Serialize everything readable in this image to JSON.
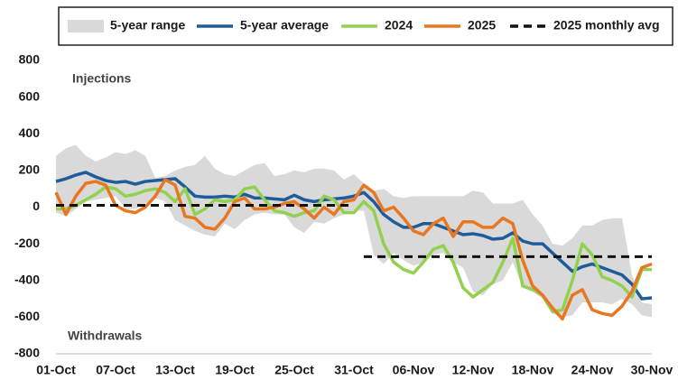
{
  "chart_data": {
    "type": "line",
    "legend": "top",
    "annotations": [
      "Injections",
      "Withdrawals"
    ],
    "categories": [
      "01-Oct",
      null,
      null,
      null,
      null,
      null,
      "07-Oct",
      null,
      null,
      null,
      null,
      null,
      "13-Oct",
      null,
      null,
      null,
      null,
      null,
      "19-Oct",
      null,
      null,
      null,
      null,
      null,
      "25-Oct",
      null,
      null,
      null,
      null,
      null,
      "31-Oct",
      null,
      null,
      null,
      null,
      null,
      "06-Nov",
      null,
      null,
      null,
      null,
      null,
      "12-Nov",
      null,
      null,
      null,
      null,
      null,
      "18-Nov",
      null,
      null,
      null,
      null,
      null,
      "24-Nov",
      null,
      null,
      null,
      null,
      null,
      "30-Nov"
    ],
    "ylim": [
      -800,
      800
    ],
    "yticks": [
      -800,
      -600,
      -400,
      -200,
      0,
      200,
      400,
      600,
      800
    ],
    "series": [
      {
        "name": "5-year range",
        "kind": "band",
        "color": "#d9d9d9",
        "low": [
          -30,
          -50,
          -10,
          30,
          40,
          50,
          60,
          -10,
          -10,
          20,
          50,
          30,
          -70,
          -100,
          -130,
          -150,
          -160,
          -90,
          -120,
          -70,
          -40,
          -30,
          -40,
          -40,
          -110,
          -140,
          -80,
          -90,
          -60,
          -40,
          -20,
          -20,
          -260,
          -310,
          -250,
          -290,
          -320,
          -300,
          -260,
          -250,
          -300,
          -330,
          -460,
          -480,
          -420,
          -400,
          -300,
          -440,
          -460,
          -500,
          -580,
          -600,
          -590,
          -520,
          -520,
          -520,
          -530,
          -500,
          -530,
          -590,
          -600
        ],
        "high": [
          280,
          320,
          340,
          280,
          250,
          270,
          300,
          290,
          310,
          280,
          160,
          170,
          200,
          220,
          230,
          280,
          210,
          180,
          170,
          200,
          230,
          240,
          170,
          180,
          200,
          190,
          210,
          210,
          200,
          150,
          180,
          130,
          90,
          100,
          60,
          50,
          60,
          60,
          60,
          60,
          60,
          60,
          90,
          80,
          20,
          20,
          20,
          40,
          -40,
          -100,
          -200,
          -210,
          -170,
          -100,
          -100,
          -70,
          -60,
          -60,
          -370,
          -520,
          -530
        ]
      },
      {
        "name": "5-year average",
        "kind": "line",
        "color": "#1f5c99",
        "values": [
          140,
          155,
          175,
          190,
          165,
          145,
          135,
          140,
          125,
          140,
          145,
          150,
          155,
          110,
          60,
          55,
          55,
          60,
          55,
          70,
          50,
          50,
          45,
          40,
          65,
          40,
          30,
          40,
          45,
          50,
          60,
          80,
          30,
          -40,
          -80,
          -110,
          -110,
          -90,
          -90,
          -110,
          -130,
          -150,
          -145,
          -155,
          -175,
          -170,
          -140,
          -185,
          -200,
          -200,
          -250,
          -300,
          -350,
          -325,
          -310,
          -330,
          -350,
          -370,
          -420,
          -500,
          -495
        ]
      },
      {
        "name": "2024",
        "kind": "line",
        "color": "#92d050",
        "values": [
          -10,
          -10,
          10,
          40,
          70,
          110,
          100,
          60,
          70,
          90,
          100,
          80,
          30,
          100,
          -40,
          -10,
          40,
          30,
          40,
          100,
          110,
          40,
          -20,
          -30,
          -50,
          -30,
          -20,
          60,
          40,
          -30,
          -30,
          30,
          -20,
          -200,
          -300,
          -340,
          -360,
          -300,
          -230,
          -210,
          -300,
          -440,
          -490,
          -450,
          -410,
          -300,
          -170,
          -430,
          -450,
          -480,
          -570,
          -560,
          -400,
          -200,
          -260,
          -380,
          -400,
          -430,
          -490,
          -340,
          -340
        ]
      },
      {
        "name": "2025",
        "kind": "line",
        "color": "#e87722",
        "values": [
          80,
          -40,
          60,
          130,
          140,
          120,
          10,
          -20,
          -30,
          0,
          60,
          150,
          120,
          -50,
          -60,
          -110,
          -120,
          -60,
          30,
          50,
          -10,
          -10,
          0,
          20,
          30,
          -10,
          -60,
          0,
          -40,
          30,
          40,
          120,
          80,
          -20,
          0,
          -60,
          -130,
          -150,
          -90,
          -60,
          -160,
          -80,
          -80,
          -110,
          -110,
          -60,
          -90,
          -290,
          -430,
          -480,
          -550,
          -610,
          -480,
          -450,
          -560,
          -580,
          -590,
          -540,
          -460,
          -330,
          -310
        ]
      },
      {
        "name": "2025 monthly avg",
        "kind": "step",
        "dashed": true,
        "color": "#111111",
        "values": [
          10,
          10,
          10,
          10,
          10,
          10,
          10,
          10,
          10,
          10,
          10,
          10,
          10,
          10,
          10,
          10,
          10,
          10,
          10,
          10,
          10,
          10,
          10,
          10,
          10,
          10,
          10,
          10,
          10,
          10,
          10,
          -270,
          -270,
          -270,
          -270,
          -270,
          -270,
          -270,
          -270,
          -270,
          -270,
          -270,
          -270,
          -270,
          -270,
          -270,
          -270,
          -270,
          -270,
          -270,
          -270,
          -270,
          -270,
          -270,
          -270,
          -270,
          -270,
          -270,
          -270,
          -270,
          -270
        ]
      }
    ]
  }
}
